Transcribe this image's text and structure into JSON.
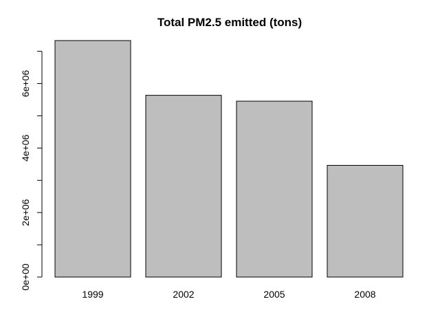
{
  "chart_data": {
    "type": "bar",
    "title": "Total PM2.5 emitted (tons)",
    "xlabel": "",
    "ylabel": "",
    "categories": [
      "1999",
      "2002",
      "2005",
      "2008"
    ],
    "values": [
      7332967,
      5635780,
      5454703,
      3464206
    ],
    "ylim": [
      0,
      7332967
    ],
    "yticks": [
      0,
      1000000,
      2000000,
      3000000,
      4000000,
      5000000,
      6000000,
      7000000
    ],
    "ytick_labels": [
      "0e+00",
      "",
      "2e+06",
      "",
      "4e+06",
      "",
      "6e+06",
      ""
    ],
    "grid": false,
    "legend": "none",
    "colors": {
      "bar_fill": "#bebebe",
      "bar_stroke": "#000000",
      "axis": "#000000",
      "background": "#ffffff"
    }
  }
}
